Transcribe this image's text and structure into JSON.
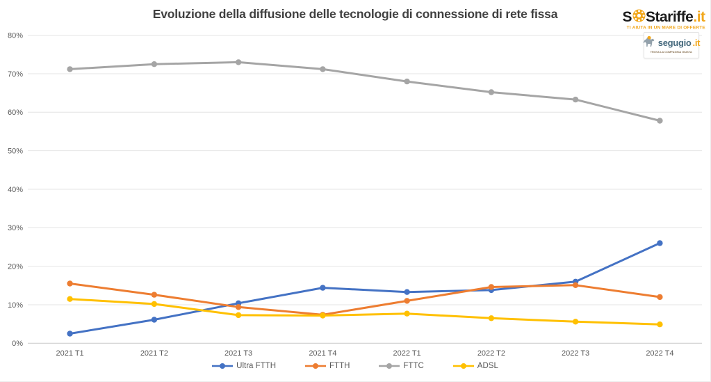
{
  "header": {
    "title": "Evoluzione della diffusione delle tecnologie di connessione di rete fissa"
  },
  "logos": {
    "sostariffe": {
      "prefix": "S",
      "middle": "Stariffe",
      "suffix": ".it",
      "tagline": "TI AIUTA IN UN MARE DI OFFERTE",
      "text_color": "#1c1c1c",
      "accent_color": "#f2a71b"
    },
    "segugio": {
      "name": "segugio",
      "suffix": ".it",
      "tagline": "TROVA LA COMPAGNIA GIUSTA",
      "name_color": "#44687c",
      "accent_color": "#f2a71b",
      "dog_color": "#93a1ab"
    }
  },
  "chart_data": {
    "type": "line",
    "title": "Evoluzione della diffusione delle tecnologie di connessione di rete fissa",
    "categories": [
      "2021 T1",
      "2021 T2",
      "2021 T3",
      "2021 T4",
      "2022 T1",
      "2022 T2",
      "2022 T3",
      "2022 T4"
    ],
    "series": [
      {
        "name": "Ultra FTTH",
        "color": "#4472C4",
        "values": [
          2.5,
          6.1,
          10.4,
          14.4,
          13.3,
          13.8,
          16.0,
          26.0
        ]
      },
      {
        "name": "FTTH",
        "color": "#ED7D31",
        "values": [
          15.5,
          12.6,
          9.4,
          7.4,
          11.0,
          14.6,
          15.1,
          12.0
        ]
      },
      {
        "name": "FTTC",
        "color": "#A5A5A5",
        "values": [
          71.2,
          72.5,
          73.0,
          71.2,
          68.0,
          65.2,
          63.3,
          57.8
        ]
      },
      {
        "name": "ADSL",
        "color": "#FFC000",
        "values": [
          11.5,
          10.2,
          7.3,
          7.2,
          7.7,
          6.5,
          5.6,
          4.9
        ]
      }
    ],
    "xlabel": "",
    "ylabel": "",
    "ylim": [
      0,
      80
    ],
    "ytick_step": 10,
    "ytick_labels": [
      "0%",
      "10%",
      "20%",
      "30%",
      "40%",
      "50%",
      "60%",
      "70%",
      "80%"
    ],
    "grid": true,
    "legend_position": "bottom",
    "tick_color": "#595959",
    "grid_color": "#e4e4e4",
    "axis_color": "#c9c9c9"
  }
}
